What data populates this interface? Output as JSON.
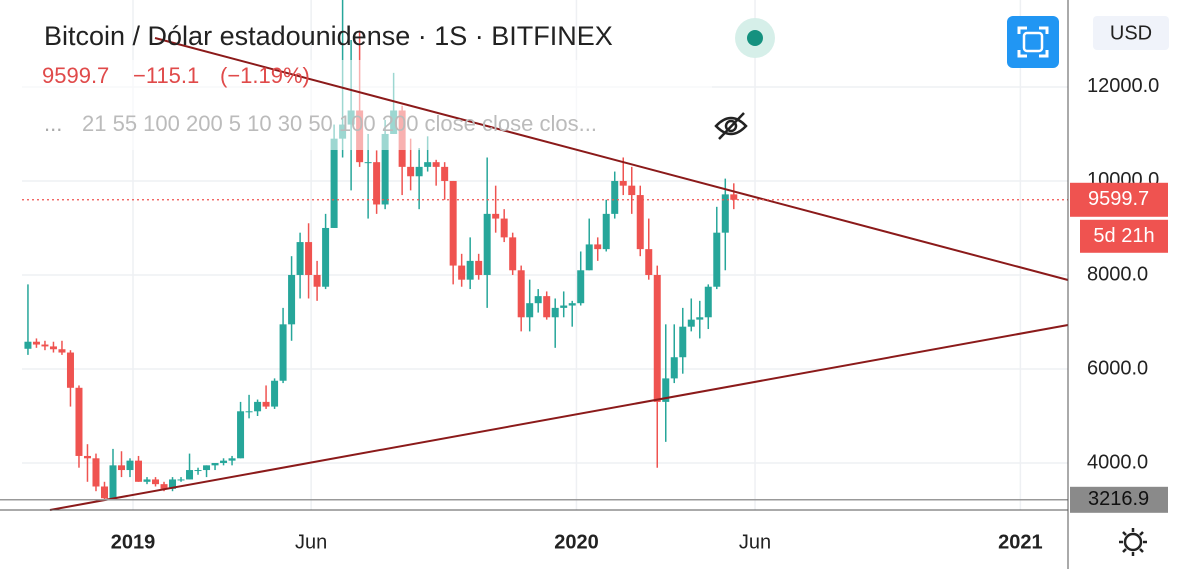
{
  "chart_data": {
    "type": "candlestick",
    "title": "Bitcoin / Dólar estadounidense · 1S · BITFINEX",
    "last_price": "9599.7",
    "change": "−115.1",
    "change_pct": "(−1.19%)",
    "indicators_toggle": "...",
    "indicators": "21 55 100 200 5 10 30 50 100 200 close close clos...",
    "currency": "USD",
    "countdown": "5d 21h",
    "up_color": "#26a69a",
    "down_color": "#ef5350",
    "grid": true,
    "open": [
      6430,
      6580,
      6520,
      6480,
      6420,
      6350,
      5600,
      4150,
      4100,
      3500,
      3250,
      3950,
      3850,
      4050,
      3600,
      3650,
      3550,
      3450,
      3650,
      3650,
      3850,
      3850,
      3950,
      4000,
      4050,
      4100,
      5100,
      5100,
      5300,
      5200,
      5750,
      6950,
      8000,
      8700,
      8000,
      7750,
      9000,
      10900,
      11200,
      11500,
      10400,
      10400,
      9500,
      11000,
      11500,
      10300,
      10100,
      10300,
      10400,
      10300,
      10000,
      8200,
      7900,
      8300,
      8000,
      9300,
      9200,
      8800,
      8100,
      7100,
      7400,
      7550,
      7100,
      7300,
      7350,
      7400,
      8100,
      8650,
      8550,
      9300,
      10000,
      9900,
      9700,
      8550,
      8000,
      5300,
      5800,
      6250,
      6900,
      7050,
      7100,
      7750,
      8900,
      9714.8
    ],
    "high": [
      7800,
      6650,
      6600,
      6580,
      6600,
      6400,
      5650,
      4400,
      4200,
      3600,
      4300,
      4250,
      4100,
      4150,
      3700,
      3700,
      3600,
      3700,
      3700,
      4200,
      3900,
      3950,
      4000,
      4100,
      4150,
      5300,
      5450,
      5350,
      5650,
      5800,
      7300,
      8400,
      8900,
      9100,
      8300,
      9300,
      11200,
      13850,
      13000,
      13200,
      11000,
      10650,
      11300,
      12300,
      11600,
      10900,
      10700,
      10950,
      10450,
      10400,
      10000,
      8450,
      8800,
      8450,
      10500,
      9900,
      9400,
      8900,
      8200,
      7900,
      7700,
      7650,
      7500,
      7650,
      7450,
      8500,
      9200,
      8800,
      9600,
      10200,
      10500,
      10300,
      9900,
      9200,
      8200,
      6950,
      6950,
      7300,
      7500,
      7450,
      7800,
      9450,
      10050,
      9950
    ],
    "low": [
      6300,
      6450,
      6400,
      6350,
      6300,
      5200,
      3900,
      3600,
      3400,
      3216.9,
      3250,
      3700,
      3700,
      3600,
      3550,
      3500,
      3400,
      3400,
      3600,
      3650,
      3750,
      3700,
      3850,
      3950,
      3950,
      4100,
      4950,
      5000,
      5150,
      5150,
      5700,
      6600,
      7500,
      7500,
      7450,
      7700,
      9000,
      10500,
      9800,
      10300,
      9200,
      9300,
      9400,
      11000,
      9700,
      9800,
      9400,
      10200,
      9900,
      9600,
      7800,
      7750,
      7700,
      7900,
      7300,
      8900,
      8700,
      8000,
      6800,
      6800,
      7200,
      7050,
      6450,
      7100,
      6900,
      7350,
      8100,
      8300,
      8500,
      9200,
      9700,
      9300,
      8400,
      7900,
      3900,
      4450,
      5700,
      5900,
      6800,
      6650,
      6850,
      7700,
      8100,
      9400
    ],
    "close": [
      6580,
      6520,
      6480,
      6420,
      6350,
      5600,
      4150,
      4100,
      3500,
      3250,
      3950,
      3850,
      4050,
      3600,
      3650,
      3550,
      3450,
      3650,
      3650,
      3850,
      3850,
      3950,
      4000,
      4050,
      4100,
      5100,
      5100,
      5300,
      5200,
      5750,
      6950,
      8000,
      8700,
      8000,
      7750,
      9000,
      10900,
      11200,
      11500,
      10400,
      10400,
      9500,
      11000,
      11500,
      10300,
      10100,
      10300,
      10400,
      10300,
      10000,
      8200,
      7900,
      8300,
      8000,
      9300,
      9200,
      8800,
      8100,
      7100,
      7400,
      7550,
      7100,
      7300,
      7350,
      7400,
      8100,
      8650,
      8550,
      9300,
      10000,
      9900,
      9700,
      8550,
      8000,
      5300,
      5800,
      6250,
      6900,
      7050,
      7100,
      7750,
      8900,
      9714.8,
      9599.7
    ],
    "xlim": [
      -0.7,
      122.3
    ],
    "xticks": [
      {
        "value": 12.35,
        "label": "2019"
      },
      {
        "value": 33.3,
        "label": "Jun"
      },
      {
        "value": 64.5,
        "label": "2020"
      },
      {
        "value": 85.5,
        "label": "Jun"
      },
      {
        "value": 116.7,
        "label": "2021"
      }
    ],
    "ylim": [
      3000,
      13850
    ],
    "yticks": [
      {
        "value": 4000,
        "label": "4000.0"
      },
      {
        "value": 6000,
        "label": "6000.0"
      },
      {
        "value": 8000,
        "label": "8000.0"
      },
      {
        "value": 10000,
        "label": "10000.0"
      },
      {
        "value": 12000,
        "label": "12000.0"
      }
    ]
  }
}
